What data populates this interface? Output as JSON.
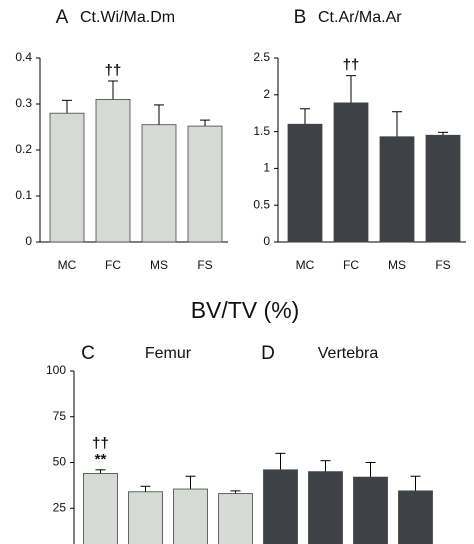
{
  "chart_data": [
    {
      "type": "bar",
      "label": "A",
      "title": "Ct.Wi/Ma.Dm",
      "categories": [
        "MC",
        "FC",
        "MS",
        "FS"
      ],
      "values": [
        0.28,
        0.31,
        0.255,
        0.252
      ],
      "errors": [
        0.028,
        0.04,
        0.043,
        0.013
      ],
      "annotations": [
        null,
        "††",
        null,
        null
      ],
      "color": "#d5dad4",
      "ylim": [
        0,
        0.4
      ],
      "yticks": [
        0,
        0.1,
        0.2,
        0.3,
        0.4
      ]
    },
    {
      "type": "bar",
      "label": "B",
      "title": "Ct.Ar/Ma.Ar",
      "categories": [
        "MC",
        "FC",
        "MS",
        "FS"
      ],
      "values": [
        1.6,
        1.89,
        1.43,
        1.45
      ],
      "errors": [
        0.21,
        0.37,
        0.34,
        0.04
      ],
      "annotations": [
        null,
        "††",
        null,
        null
      ],
      "color": "#3e4146",
      "ylim": [
        0,
        2.5
      ],
      "yticks": [
        0,
        0.5,
        1,
        1.5,
        2,
        2.5
      ]
    },
    {
      "type": "grouped-bar",
      "title": "BV/TV (%)",
      "ylim": [
        0,
        100
      ],
      "yticks": [
        25,
        50,
        75,
        100
      ],
      "groups": [
        {
          "label": "C",
          "title": "Femur",
          "color": "#d5dad4",
          "values": [
            44,
            34,
            35.5,
            33
          ],
          "errors": [
            2,
            3,
            7,
            1.5
          ],
          "annotations": [
            [
              "††",
              "**"
            ],
            null,
            null,
            null
          ]
        },
        {
          "label": "D",
          "title": "Vertebra",
          "color": "#3e4146",
          "values": [
            46,
            45,
            42,
            34.5
          ],
          "errors": [
            9,
            6,
            8,
            8
          ],
          "annotations": [
            null,
            null,
            null,
            null
          ]
        }
      ]
    }
  ]
}
